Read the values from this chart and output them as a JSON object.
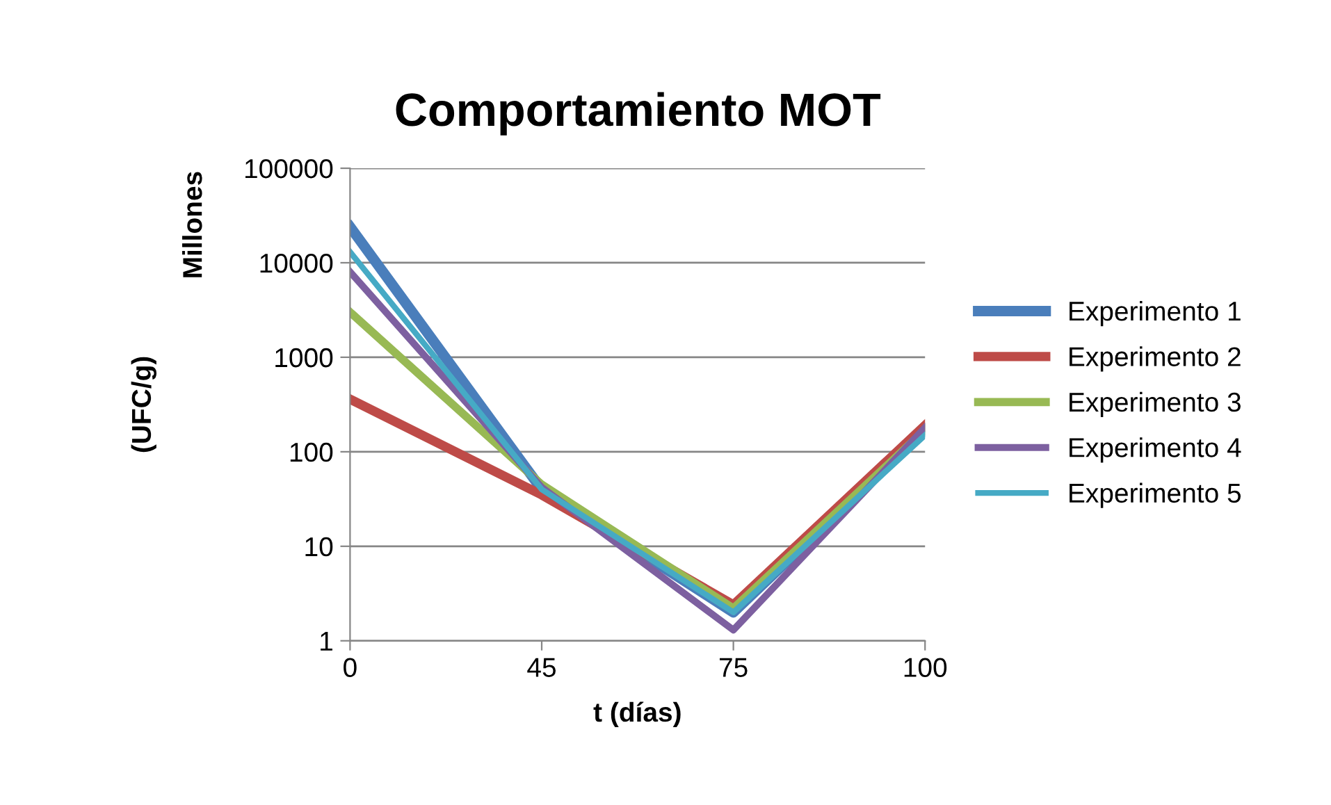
{
  "chart_data": {
    "type": "line",
    "title": "Comportamiento MOT",
    "xlabel": "t (días)",
    "ylabel": "(UFC/g)",
    "annotations": [
      "Millones"
    ],
    "categories": [
      "0",
      "45",
      "75",
      "100"
    ],
    "series": [
      {
        "name": "Experimento 1",
        "color": "#4a7ebb",
        "values": [
          24000,
          40,
          2,
          170
        ]
      },
      {
        "name": "Experimento 2",
        "color": "#be4b48",
        "values": [
          360,
          35,
          2.4,
          190
        ]
      },
      {
        "name": "Experimento 3",
        "color": "#98b954",
        "values": [
          3000,
          45,
          2.2,
          170
        ]
      },
      {
        "name": "Experimento 4",
        "color": "#7d60a0",
        "values": [
          8000,
          42,
          1.3,
          180
        ]
      },
      {
        "name": "Experimento 5",
        "color": "#46aac5",
        "values": [
          13000,
          40,
          2,
          150
        ]
      }
    ],
    "log": "y",
    "ylim": [
      1,
      100000
    ],
    "yticks": [
      1,
      10,
      100,
      1000,
      10000,
      100000
    ],
    "grid": "y",
    "legend": "right",
    "marker": "none",
    "line_style": "solid"
  }
}
